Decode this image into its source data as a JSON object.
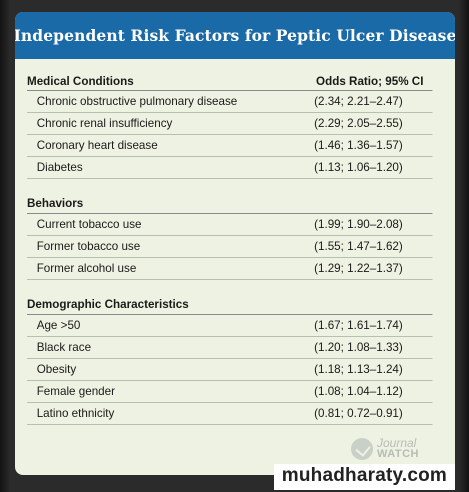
{
  "title": "Independent Risk Factors for Peptic Ulcer Disease",
  "header": {
    "factor_col": "Medical Conditions",
    "odds_col": "Odds Ratio; 95% CI"
  },
  "sections": [
    {
      "name": "Medical Conditions",
      "rows": [
        {
          "factor": "Chronic obstructive pulmonary disease",
          "odds": "(2.34; 2.21–2.47)"
        },
        {
          "factor": "Chronic renal insufficiency",
          "odds": "(2.29; 2.05–2.55)"
        },
        {
          "factor": "Coronary heart disease",
          "odds": "(1.46; 1.36–1.57)"
        },
        {
          "factor": "Diabetes",
          "odds": "(1.13; 1.06–1.20)"
        }
      ]
    },
    {
      "name": "Behaviors",
      "rows": [
        {
          "factor": "Current tobacco use",
          "odds": "(1.99; 1.90–2.08)"
        },
        {
          "factor": "Former tobacco use",
          "odds": "(1.55; 1.47–1.62)"
        },
        {
          "factor": "Former alcohol use",
          "odds": "(1.29; 1.22–1.37)"
        }
      ]
    },
    {
      "name": "Demographic Characteristics",
      "rows": [
        {
          "factor": "Age >50",
          "odds": "(1.67; 1.61–1.74)"
        },
        {
          "factor": "Black race",
          "odds": "(1.20; 1.08–1.33)"
        },
        {
          "factor": "Obesity",
          "odds": "(1.18; 1.13–1.24)"
        },
        {
          "factor": "Female gender",
          "odds": "(1.08; 1.04–1.12)"
        },
        {
          "factor": "Latino ethnicity",
          "odds": "(0.81; 0.72–0.91)"
        }
      ]
    }
  ],
  "logo": {
    "line1": "Journal",
    "line2": "WATCH"
  },
  "watermark": "muhadharaty.com",
  "colors": {
    "title_bar": "#1b6aa8",
    "card_background": "#eef2e2",
    "frame": "#2b2b2b"
  }
}
